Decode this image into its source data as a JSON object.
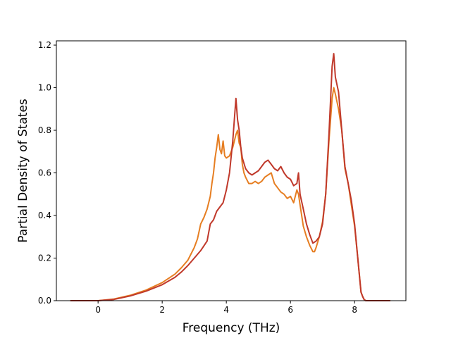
{
  "chart_data": {
    "type": "line",
    "title": "",
    "xlabel": "Frequency (THz)",
    "ylabel": "Partial Density of States",
    "xlim": [
      -1.3,
      9.6
    ],
    "ylim": [
      0,
      1.22
    ],
    "xticks": [
      0,
      2,
      4,
      6,
      8
    ],
    "yticks": [
      0.0,
      0.2,
      0.4,
      0.6,
      0.8,
      1.0,
      1.2
    ],
    "xtick_labels": [
      "0",
      "2",
      "4",
      "6",
      "8"
    ],
    "ytick_labels": [
      "0.0",
      "0.2",
      "0.4",
      "0.6",
      "0.8",
      "1.0",
      "1.2"
    ],
    "grid": false,
    "legend": "none",
    "series": [
      {
        "color": "#e67e22",
        "x": [
          -0.85,
          0,
          0.5,
          1.0,
          1.5,
          2.0,
          2.4,
          2.6,
          2.8,
          3.0,
          3.1,
          3.2,
          3.3,
          3.4,
          3.5,
          3.55,
          3.6,
          3.65,
          3.7,
          3.75,
          3.8,
          3.85,
          3.9,
          3.95,
          4.0,
          4.1,
          4.2,
          4.3,
          4.35,
          4.4,
          4.45,
          4.5,
          4.55,
          4.6,
          4.7,
          4.8,
          4.9,
          5.0,
          5.1,
          5.2,
          5.3,
          5.4,
          5.5,
          5.6,
          5.7,
          5.8,
          5.9,
          6.0,
          6.1,
          6.2,
          6.25,
          6.3,
          6.4,
          6.5,
          6.6,
          6.7,
          6.75,
          6.8,
          6.9,
          7.0,
          7.1,
          7.2,
          7.3,
          7.35,
          7.4,
          7.5,
          7.6,
          7.7,
          7.8,
          7.9,
          8.0,
          8.1,
          8.2,
          8.25,
          8.3,
          8.35,
          8.4,
          8.6,
          9.1
        ],
        "y": [
          0.0,
          0.0,
          0.008,
          0.025,
          0.05,
          0.085,
          0.125,
          0.155,
          0.19,
          0.25,
          0.29,
          0.36,
          0.39,
          0.43,
          0.49,
          0.55,
          0.6,
          0.67,
          0.72,
          0.78,
          0.71,
          0.69,
          0.75,
          0.68,
          0.67,
          0.68,
          0.72,
          0.78,
          0.8,
          0.74,
          0.72,
          0.64,
          0.6,
          0.58,
          0.55,
          0.55,
          0.56,
          0.55,
          0.56,
          0.58,
          0.59,
          0.6,
          0.55,
          0.53,
          0.51,
          0.5,
          0.48,
          0.49,
          0.46,
          0.52,
          0.5,
          0.45,
          0.35,
          0.3,
          0.26,
          0.23,
          0.23,
          0.25,
          0.3,
          0.37,
          0.5,
          0.75,
          0.95,
          1.0,
          0.97,
          0.9,
          0.8,
          0.62,
          0.55,
          0.45,
          0.35,
          0.2,
          0.04,
          0.02,
          0.005,
          0.0,
          0.0,
          0.0,
          0.0
        ]
      },
      {
        "color": "#c0392b",
        "x": [
          -0.85,
          0,
          0.5,
          1.0,
          1.5,
          2.0,
          2.4,
          2.6,
          2.8,
          3.0,
          3.2,
          3.4,
          3.5,
          3.6,
          3.7,
          3.8,
          3.9,
          4.0,
          4.1,
          4.2,
          4.3,
          4.35,
          4.4,
          4.45,
          4.5,
          4.6,
          4.7,
          4.8,
          4.9,
          5.0,
          5.1,
          5.2,
          5.3,
          5.4,
          5.5,
          5.6,
          5.7,
          5.8,
          5.9,
          6.0,
          6.1,
          6.2,
          6.25,
          6.3,
          6.4,
          6.5,
          6.6,
          6.7,
          6.8,
          6.9,
          7.0,
          7.1,
          7.2,
          7.3,
          7.35,
          7.4,
          7.5,
          7.6,
          7.7,
          7.8,
          7.9,
          8.0,
          8.1,
          8.2,
          8.25,
          8.3,
          8.35,
          8.4,
          8.6,
          9.1
        ],
        "y": [
          0.0,
          0.0,
          0.006,
          0.022,
          0.045,
          0.075,
          0.11,
          0.135,
          0.165,
          0.2,
          0.235,
          0.28,
          0.36,
          0.38,
          0.42,
          0.44,
          0.46,
          0.52,
          0.6,
          0.75,
          0.95,
          0.85,
          0.8,
          0.72,
          0.67,
          0.62,
          0.6,
          0.59,
          0.6,
          0.61,
          0.63,
          0.65,
          0.66,
          0.64,
          0.62,
          0.61,
          0.63,
          0.6,
          0.58,
          0.57,
          0.54,
          0.55,
          0.6,
          0.5,
          0.43,
          0.36,
          0.31,
          0.27,
          0.28,
          0.3,
          0.36,
          0.5,
          0.78,
          1.1,
          1.16,
          1.05,
          0.98,
          0.8,
          0.63,
          0.55,
          0.47,
          0.36,
          0.2,
          0.04,
          0.02,
          0.005,
          0.0,
          0.0,
          0.0,
          0.0
        ]
      }
    ]
  }
}
